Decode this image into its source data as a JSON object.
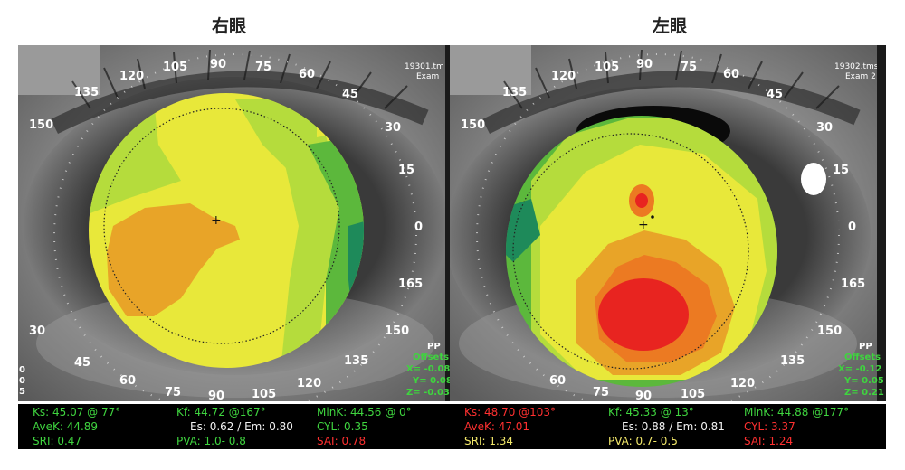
{
  "right_eye": {
    "title": "右眼",
    "exam_file": "19301.tm",
    "exam_label": "Exam",
    "angles": [
      "120",
      "105",
      "90",
      "75",
      "60",
      "45",
      "30",
      "15",
      "0",
      "165",
      "150",
      "135",
      "120",
      "105",
      "90",
      "75",
      "60",
      "45",
      "30",
      "150",
      "135"
    ],
    "pp": {
      "label": "PP",
      "offsets_label": "Offsets",
      "x": "X= -0.08",
      "y": "Y= 0.08",
      "z": "Z= -0.03"
    },
    "edge_digits": [
      "0",
      "0",
      "5"
    ],
    "stats": {
      "ks": "Ks: 45.07 @ 77°",
      "kf": "Kf: 44.72 @167°",
      "mink": "MinK: 44.56 @  0°",
      "avek": "AveK: 44.89",
      "es_em": "Es: 0.62 / Em: 0.80",
      "cyl": "CYL:  0.35",
      "sri": "SRI: 0.47",
      "pva": "PVA:   1.0-  0.8",
      "sai": "SAI: 0.78"
    }
  },
  "left_eye": {
    "title": "左眼",
    "exam_file": "19302.tms",
    "exam_label": "Exam 2",
    "angles": [
      "120",
      "105",
      "90",
      "75",
      "60",
      "45",
      "30",
      "15",
      "0",
      "165",
      "150",
      "135",
      "120",
      "105",
      "90",
      "75",
      "60",
      "150",
      "135"
    ],
    "pp": {
      "label": "PP",
      "offsets_label": "Offsets",
      "x": "X= -0.12",
      "y": "Y= 0.05",
      "z": "Z= 0.21"
    },
    "stats": {
      "ks": "Ks: 48.70 @103°",
      "kf": "Kf: 45.33 @ 13°",
      "mink": "MinK: 44.88 @177°",
      "avek": "AveK: 47.01",
      "es_em": "Es: 0.88 / Em: 0.81",
      "cyl": "CYL:  3.37",
      "sri": "SRI: 1.34",
      "pva": "PVA:   0.7-  0.5",
      "sai": "SAI: 1.24"
    }
  },
  "colors": {
    "green_text": "#3fd43f",
    "red_text": "#ff3030",
    "yellow_text": "#f2e86a",
    "map_yellow": "#e8e83a",
    "map_light_green": "#b5dc3c",
    "map_green": "#5cb83c",
    "map_teal": "#1e8a5a",
    "map_orange": "#e8a428",
    "map_red": "#e82420"
  }
}
